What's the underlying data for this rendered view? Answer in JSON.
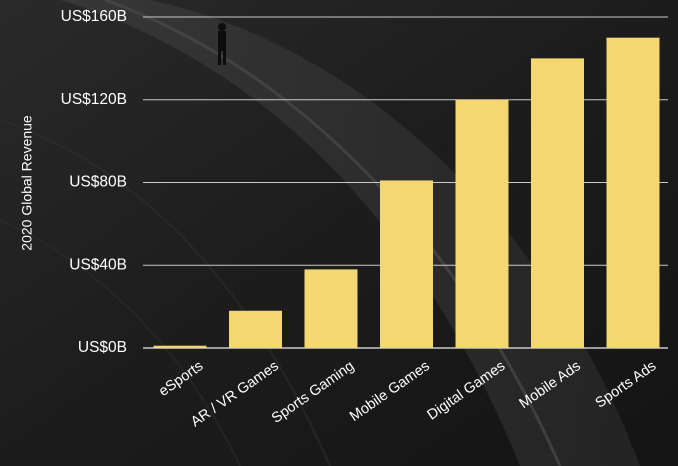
{
  "chart_data": {
    "type": "bar",
    "categories": [
      "eSports",
      "AR / VR Games",
      "Sports Gaming",
      "Mobile Games",
      "Digital Games",
      "Mobile Ads",
      "Sports Ads"
    ],
    "values": [
      1.1,
      18,
      38,
      81,
      120,
      140,
      150
    ],
    "ylabel": "2020 Global Revenue",
    "xlabel": "",
    "ylim": [
      0,
      160
    ],
    "yticks": [
      0,
      40,
      80,
      120,
      160
    ],
    "ytick_labels": [
      "US$0B",
      "US$40B",
      "US$80B",
      "US$120B",
      "US$160B"
    ],
    "grid": true,
    "legend": "none"
  },
  "colors": {
    "bar": "#f3d770",
    "grid": "#c9c9c9",
    "text": "#ffffff",
    "background": "#1f1f1f"
  }
}
